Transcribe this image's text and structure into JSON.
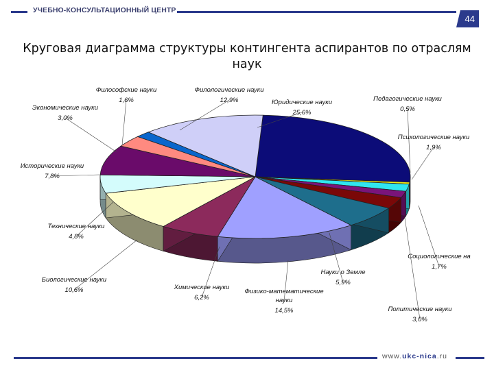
{
  "header": {
    "brand": "УЧЕБНО-КОНСУЛЬТАЦИОННЫЙ ЦЕНТР",
    "page_number": "44"
  },
  "footer": {
    "site_prefix": "www.",
    "site_main": "ukc-nica",
    "site_suffix": ".ru"
  },
  "title": "Круговая диаграмма структуры контингента аспирантов по отраслям наук",
  "chart_data": {
    "type": "pie",
    "title": "Круговая диаграмма структуры контингента аспирантов по отраслям наук",
    "slices": [
      {
        "name": "Юридические науки",
        "value": 25.6,
        "label": "25,6%",
        "color": "#0c0c78"
      },
      {
        "name": "Педагогические науки",
        "value": 0.5,
        "label": "0,5%",
        "color": "#f2ec14"
      },
      {
        "name": "Психологические науки",
        "value": 1.9,
        "label": "1,9%",
        "color": "#30e6f0"
      },
      {
        "name": "Социологические на",
        "value": 1.7,
        "label": "1,7%",
        "color": "#7a147a"
      },
      {
        "name": "Политические науки",
        "value": 3.0,
        "label": "3,0%",
        "color": "#7a0808"
      },
      {
        "name": "Науки о Земле",
        "value": 5.9,
        "label": "5,9%",
        "color": "#1e6e8c"
      },
      {
        "name": "Физико-математические науки",
        "value": 14.5,
        "label": "14,5%",
        "color": "#9fa0ff"
      },
      {
        "name": "Химические науки",
        "value": 6.2,
        "label": "6,2%",
        "color": "#8c2a5c"
      },
      {
        "name": "Биологические науки",
        "value": 10.6,
        "label": "10,6%",
        "color": "#ffffcc"
      },
      {
        "name": "Технические науки",
        "value": 4.8,
        "label": "4,8%",
        "color": "#d4fcfc"
      },
      {
        "name": "Исторические науки",
        "value": 7.8,
        "label": "7,8%",
        "color": "#6a0b6a"
      },
      {
        "name": "Экономические науки",
        "value": 3.0,
        "label": "3,0%",
        "color": "#ff8a80"
      },
      {
        "name": "Философские науки",
        "value": 1.6,
        "label": "1,6%",
        "color": "#0a66cc"
      },
      {
        "name": "Филологические науки",
        "value": 12.9,
        "label": "12,9%",
        "color": "#cfcff8"
      }
    ]
  }
}
